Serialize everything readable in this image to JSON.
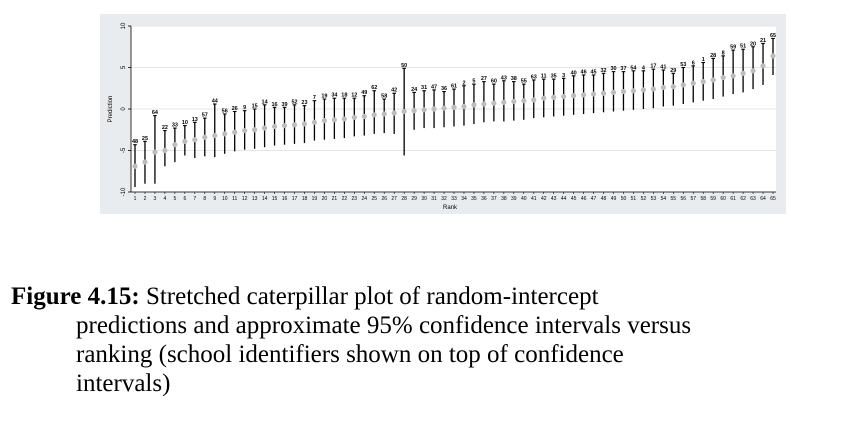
{
  "chart_data": {
    "type": "scatter",
    "xlabel": "Rank",
    "ylabel": "Prediction",
    "xlim": [
      1,
      65
    ],
    "ylim": [
      -10,
      10
    ],
    "yticks": [
      -10,
      -5,
      0,
      5,
      10
    ],
    "x": [
      1,
      2,
      3,
      4,
      5,
      6,
      7,
      8,
      9,
      10,
      11,
      12,
      13,
      14,
      15,
      16,
      17,
      18,
      19,
      20,
      21,
      22,
      23,
      24,
      25,
      26,
      27,
      28,
      29,
      30,
      31,
      32,
      33,
      34,
      35,
      36,
      37,
      38,
      39,
      40,
      41,
      42,
      43,
      44,
      45,
      46,
      47,
      48,
      49,
      50,
      51,
      52,
      53,
      54,
      55,
      56,
      57,
      58,
      59,
      60,
      61,
      62,
      63,
      64,
      65
    ],
    "schools": [
      "48",
      "25",
      "64",
      "22",
      "33",
      "10",
      "13",
      "57",
      "44",
      "56",
      "26",
      "9",
      "15",
      "14",
      "16",
      "39",
      "52",
      "23",
      "7",
      "19",
      "34",
      "18",
      "12",
      "49",
      "62",
      "58",
      "42",
      "50",
      "24",
      "31",
      "47",
      "36",
      "61",
      "2",
      "5",
      "27",
      "60",
      "43",
      "38",
      "55",
      "63",
      "11",
      "35",
      "3",
      "40",
      "46",
      "45",
      "32",
      "30",
      "37",
      "54",
      "4",
      "17",
      "41",
      "29",
      "53",
      "6",
      "1",
      "28",
      "8",
      "59",
      "51",
      "20",
      "21",
      "65"
    ],
    "prediction": [
      -6.9,
      -6.4,
      -5.2,
      -5.0,
      -4.3,
      -3.9,
      -3.7,
      -3.4,
      -3.2,
      -3.0,
      -2.8,
      -2.6,
      -2.5,
      -2.3,
      -2.1,
      -2.0,
      -1.9,
      -1.8,
      -1.6,
      -1.4,
      -1.3,
      -1.2,
      -1.0,
      -0.9,
      -0.7,
      -0.6,
      -0.5,
      -0.3,
      -0.2,
      -0.1,
      0.0,
      0.1,
      0.2,
      0.3,
      0.5,
      0.6,
      0.7,
      0.8,
      0.9,
      1.0,
      1.1,
      1.3,
      1.4,
      1.5,
      1.6,
      1.7,
      1.8,
      1.9,
      2.0,
      2.1,
      2.2,
      2.3,
      2.4,
      2.6,
      2.7,
      2.9,
      3.1,
      3.3,
      3.5,
      3.8,
      4.0,
      4.3,
      4.6,
      5.2,
      6.4
    ],
    "ci_lower": [
      -9.4,
      -9.0,
      -9.0,
      -6.9,
      -6.4,
      -5.6,
      -5.9,
      -5.7,
      -5.8,
      -5.4,
      -5.1,
      -4.9,
      -4.8,
      -4.6,
      -4.4,
      -4.3,
      -4.2,
      -4.1,
      -3.8,
      -3.7,
      -3.6,
      -3.5,
      -3.3,
      -3.2,
      -3.0,
      -2.9,
      -3.0,
      -5.6,
      -2.5,
      -2.3,
      -2.3,
      -2.2,
      -2.1,
      -2.0,
      -1.8,
      -1.6,
      -1.5,
      -1.5,
      -1.4,
      -1.3,
      -1.1,
      -1.0,
      -0.9,
      -0.8,
      -0.7,
      -0.6,
      -0.5,
      -0.4,
      -0.3,
      -0.2,
      -0.1,
      0.0,
      0.1,
      0.3,
      0.4,
      0.6,
      0.8,
      1.0,
      1.2,
      1.5,
      1.8,
      2.0,
      2.4,
      2.9,
      4.1
    ],
    "ci_upper": [
      -4.3,
      -3.9,
      -0.8,
      -2.6,
      -2.3,
      -2.0,
      -1.6,
      -1.1,
      0.6,
      -0.6,
      -0.3,
      -0.2,
      0.0,
      0.5,
      0.2,
      0.2,
      0.5,
      0.4,
      1.0,
      1.2,
      1.3,
      1.3,
      1.3,
      1.6,
      2.2,
      1.2,
      1.9,
      4.9,
      2.0,
      2.2,
      2.3,
      2.1,
      2.4,
      2.8,
      3.0,
      3.3,
      3.0,
      3.4,
      3.3,
      3.0,
      3.5,
      3.6,
      3.6,
      3.7,
      4.0,
      4.1,
      4.1,
      4.3,
      4.5,
      4.5,
      4.6,
      4.6,
      4.8,
      4.7,
      4.3,
      5.0,
      5.2,
      5.6,
      6.1,
      6.4,
      7.1,
      7.2,
      7.5,
      7.9,
      8.5
    ]
  },
  "caption": {
    "figure_label": "Figure 4.15:",
    "line1": "Stretched caterpillar plot of random-intercept",
    "line2": "predictions and approximate 95% confidence intervals versus",
    "line3": "ranking (school identifiers shown on top of confidence",
    "line4": "intervals)"
  }
}
